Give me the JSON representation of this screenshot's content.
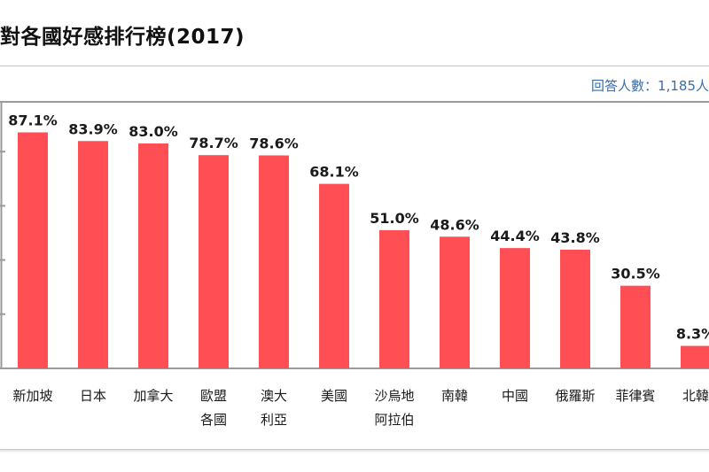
{
  "header": {
    "title": "對各國好感排行榜(2017)",
    "sample_size": "回答人數：1,185人"
  },
  "colors": {
    "bar": "#ff4e54",
    "axis": "#9a9a9a"
  },
  "chart_data": {
    "type": "bar",
    "title": "對各國好感排行榜(2017)",
    "subtitle": "回答人數：1,185人",
    "categories": [
      [
        "新加坡"
      ],
      [
        "日本"
      ],
      [
        "加拿大"
      ],
      [
        "歐盟",
        "各國"
      ],
      [
        "澳大",
        "利亞"
      ],
      [
        "美國"
      ],
      [
        "沙烏地",
        "阿拉伯"
      ],
      [
        "南韓"
      ],
      [
        "中國"
      ],
      [
        "俄羅斯"
      ],
      [
        "菲律賓"
      ],
      [
        "北韓"
      ]
    ],
    "values": [
      87.1,
      83.9,
      83.0,
      78.7,
      78.6,
      68.1,
      51.0,
      48.6,
      44.4,
      43.8,
      30.5,
      8.3
    ],
    "value_labels": [
      "87.1%",
      "83.9%",
      "83.0%",
      "78.7%",
      "78.6%",
      "68.1%",
      "51.0%",
      "48.6%",
      "44.4%",
      "43.8%",
      "30.5%",
      "8.3%"
    ],
    "ylim": [
      0,
      100
    ],
    "grid": false
  }
}
